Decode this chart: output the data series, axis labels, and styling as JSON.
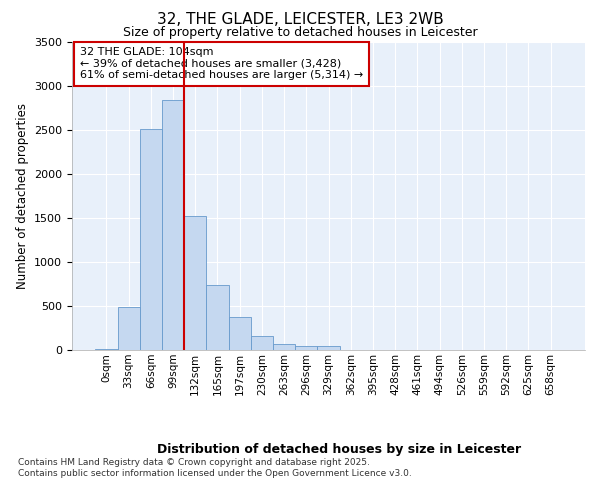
{
  "title_line1": "32, THE GLADE, LEICESTER, LE3 2WB",
  "title_line2": "Size of property relative to detached houses in Leicester",
  "xlabel": "Distribution of detached houses by size in Leicester",
  "ylabel": "Number of detached properties",
  "bar_labels": [
    "0sqm",
    "33sqm",
    "66sqm",
    "99sqm",
    "132sqm",
    "165sqm",
    "197sqm",
    "230sqm",
    "263sqm",
    "296sqm",
    "329sqm",
    "362sqm",
    "395sqm",
    "428sqm",
    "461sqm",
    "494sqm",
    "526sqm",
    "559sqm",
    "592sqm",
    "625sqm",
    "658sqm"
  ],
  "bar_values": [
    10,
    490,
    2520,
    2850,
    1530,
    740,
    380,
    155,
    70,
    45,
    40,
    0,
    0,
    0,
    0,
    0,
    0,
    0,
    0,
    0,
    0
  ],
  "bar_color": "#c5d8f0",
  "bar_edge_color": "#6699cc",
  "vline_x_data": 3.5,
  "vline_color": "#cc0000",
  "annotation_title": "32 THE GLADE: 104sqm",
  "annotation_line2": "← 39% of detached houses are smaller (3,428)",
  "annotation_line3": "61% of semi-detached houses are larger (5,314) →",
  "ylim": [
    0,
    3500
  ],
  "yticks": [
    0,
    500,
    1000,
    1500,
    2000,
    2500,
    3000,
    3500
  ],
  "fig_bg_color": "#ffffff",
  "plot_bg_color": "#e8f0fa",
  "grid_color": "#ffffff",
  "footer_line1": "Contains HM Land Registry data © Crown copyright and database right 2025.",
  "footer_line2": "Contains public sector information licensed under the Open Government Licence v3.0."
}
